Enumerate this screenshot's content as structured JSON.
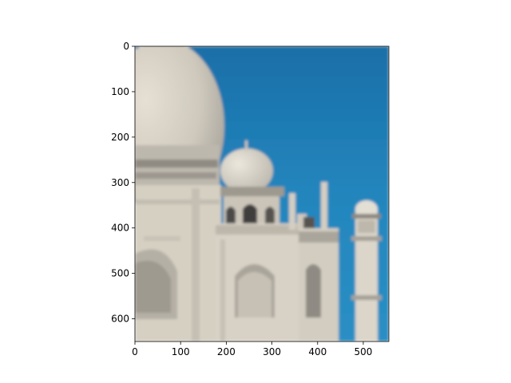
{
  "chart_data": {
    "type": "image",
    "title": "",
    "xlabel": "",
    "ylabel": "",
    "image_size": [
      556,
      650
    ],
    "xlim": [
      0,
      556
    ],
    "ylim": [
      650,
      0
    ],
    "xticks": [
      0,
      100,
      200,
      300,
      400,
      500
    ],
    "yticks": [
      0,
      100,
      200,
      300,
      400,
      500,
      600
    ],
    "xtick_labels": [
      "0",
      "100",
      "200",
      "300",
      "400",
      "500"
    ],
    "ytick_labels": [
      "0",
      "100",
      "200",
      "300",
      "400",
      "500",
      "600"
    ],
    "grid": false,
    "image_subject": "photograph of the Taj Mahal dome, chhatri and minaret against a blue sky (slightly blurred)",
    "colors": {
      "sky": "#1f7fb5",
      "marble": "#d9d3c6",
      "marble_shadow": "#a9a49a",
      "axis": "#000000"
    }
  }
}
